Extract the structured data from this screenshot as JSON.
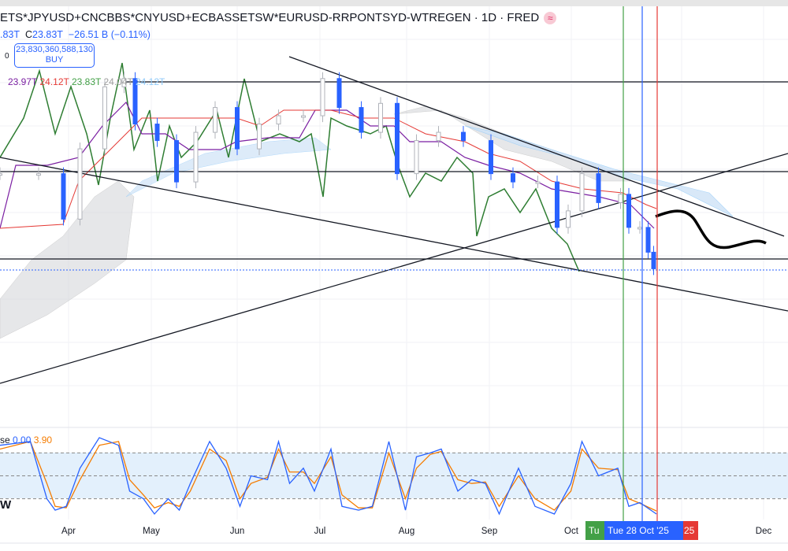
{
  "header": {
    "title": "ETS*JPYUSD+CNCBBS*CNYUSD+ECBASSETSW*EURUSD-RRPONTSYD-WTREGEN · 1D · FRED",
    "source_icon": "≈",
    "ohlc_partial": ".83T",
    "close_label": "C",
    "close": "23.83T",
    "change": "−26.51 B (−0.11%)"
  },
  "order": {
    "zero": "0",
    "price": "23,830,360,588,130",
    "side": "BUY"
  },
  "ichimoku": {
    "values": [
      "23.97T",
      "24.12T",
      "23.83T",
      "24.04T",
      "24.12T"
    ],
    "colors": [
      "#7b1fa2",
      "#e53935",
      "#43a047",
      "#9e9e9e",
      "#90caf9"
    ]
  },
  "stoch": {
    "label": "se",
    "k_value": "0.00",
    "d_value": "3.90",
    "k_color": "#2962ff",
    "d_color": "#f57c00",
    "levels": [
      80,
      50,
      20
    ]
  },
  "pane_label": "W",
  "xaxis": {
    "labels": [
      "Apr",
      "May",
      "Jun",
      "Jul",
      "Aug",
      "Sep",
      "Oct",
      "Dec"
    ]
  },
  "markers": {
    "green_label": "Tu",
    "blue_label": "Tue 28 Oct '25",
    "red_label": "25",
    "green": "#43a047",
    "blue": "#2962ff",
    "red": "#e53935"
  },
  "chart_data": {
    "type": "line",
    "title": "ETS*JPYUSD+CNCBBS*CNYUSD+ECBASSETSW*EURUSD-RRPONTSYD-WTREGEN",
    "xlabel": "",
    "ylabel": "",
    "ylim": [
      23.49,
      24.48
    ],
    "grid": true,
    "price": {
      "dates": [
        "2025-03-07",
        "2025-03-21",
        "2025-03-30",
        "2025-04-05",
        "2025-04-14",
        "2025-04-21",
        "2025-04-25",
        "2025-05-03",
        "2025-05-10",
        "2025-05-17",
        "2025-05-24",
        "2025-06-01",
        "2025-06-09",
        "2025-06-16",
        "2025-06-25",
        "2025-07-02",
        "2025-07-08",
        "2025-07-16",
        "2025-07-23",
        "2025-07-29",
        "2025-08-05",
        "2025-08-13",
        "2025-08-22",
        "2025-09-01",
        "2025-09-09",
        "2025-09-18",
        "2025-09-25",
        "2025-09-29",
        "2025-10-04",
        "2025-10-10",
        "2025-10-18",
        "2025-10-21",
        "2025-10-25",
        "2025-10-28",
        "2025-10-30"
      ],
      "close": [
        24.06,
        24.06,
        23.95,
        24.12,
        24.27,
        24.29,
        24.18,
        24.14,
        24.04,
        24.16,
        24.22,
        24.12,
        24.18,
        24.2,
        24.2,
        24.29,
        24.22,
        24.16,
        24.23,
        24.06,
        24.14,
        24.16,
        24.14,
        24.06,
        24.04,
        24.04,
        23.93,
        23.97,
        24.06,
        23.99,
        24.01,
        23.93,
        23.93,
        23.87,
        23.83
      ]
    },
    "last_price": 23.83,
    "stochastic": {
      "dates": [
        "2025-03-07",
        "2025-03-18",
        "2025-03-24",
        "2025-03-27",
        "2025-03-31",
        "2025-04-05",
        "2025-04-12",
        "2025-04-19",
        "2025-04-23",
        "2025-04-28",
        "2025-05-02",
        "2025-05-07",
        "2025-05-11",
        "2025-05-15",
        "2025-05-22",
        "2025-05-28",
        "2025-06-02",
        "2025-06-06",
        "2025-06-12",
        "2025-06-16",
        "2025-06-20",
        "2025-06-25",
        "2025-06-29",
        "2025-07-05",
        "2025-07-09",
        "2025-07-15",
        "2025-07-20",
        "2025-07-26",
        "2025-08-01",
        "2025-08-05",
        "2025-08-10",
        "2025-08-14",
        "2025-08-20",
        "2025-08-25",
        "2025-08-30",
        "2025-09-04",
        "2025-09-11",
        "2025-09-17",
        "2025-09-24",
        "2025-09-30",
        "2025-10-04",
        "2025-10-10",
        "2025-10-17",
        "2025-10-21",
        "2025-10-25",
        "2025-10-31"
      ],
      "k": [
        90,
        95,
        20,
        5,
        10,
        60,
        100,
        90,
        30,
        20,
        0,
        20,
        5,
        40,
        95,
        60,
        10,
        50,
        45,
        95,
        40,
        60,
        30,
        85,
        10,
        5,
        10,
        95,
        5,
        75,
        80,
        85,
        30,
        45,
        40,
        0,
        60,
        10,
        0,
        40,
        95,
        50,
        60,
        10,
        15,
        0
      ],
      "d": [
        85,
        95,
        40,
        10,
        8,
        45,
        90,
        95,
        45,
        25,
        8,
        15,
        10,
        30,
        85,
        70,
        20,
        40,
        48,
        85,
        55,
        55,
        40,
        75,
        25,
        8,
        8,
        80,
        20,
        60,
        78,
        82,
        45,
        40,
        42,
        10,
        50,
        20,
        5,
        30,
        85,
        60,
        58,
        20,
        14,
        4
      ]
    }
  }
}
